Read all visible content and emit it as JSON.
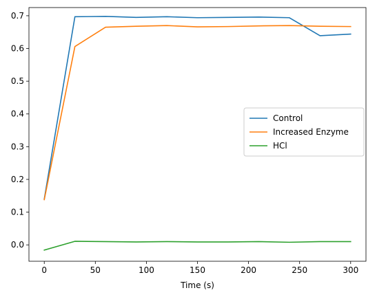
{
  "chart_data": {
    "type": "line",
    "title": "",
    "xlabel": "Time (s)",
    "ylabel": "",
    "xlim": [
      -15,
      315
    ],
    "ylim": [
      -0.05,
      0.725
    ],
    "xticks": [
      0,
      50,
      100,
      150,
      200,
      250,
      300
    ],
    "xtick_labels": [
      "0",
      "50",
      "100",
      "150",
      "200",
      "250",
      "300"
    ],
    "yticks": [
      0.0,
      0.1,
      0.2,
      0.3,
      0.4,
      0.5,
      0.6,
      0.7
    ],
    "ytick_labels": [
      "0.0",
      "0.1",
      "0.2",
      "0.3",
      "0.4",
      "0.5",
      "0.6",
      "0.7"
    ],
    "grid": false,
    "legend_position": "center-right",
    "x": [
      0,
      30,
      60,
      90,
      120,
      150,
      180,
      210,
      240,
      270,
      300
    ],
    "series": [
      {
        "name": "Control",
        "color": "#1f77b4",
        "values": [
          0.14,
          0.697,
          0.698,
          0.695,
          0.697,
          0.694,
          0.695,
          0.696,
          0.694,
          0.639,
          0.644
        ]
      },
      {
        "name": "Increased Enzyme",
        "color": "#ff7f0e",
        "values": [
          0.138,
          0.606,
          0.665,
          0.668,
          0.67,
          0.666,
          0.667,
          0.669,
          0.67,
          0.668,
          0.667
        ]
      },
      {
        "name": "HCl",
        "color": "#2ca02c",
        "values": [
          -0.016,
          0.011,
          0.01,
          0.009,
          0.01,
          0.009,
          0.009,
          0.01,
          0.008,
          0.01,
          0.01
        ]
      }
    ]
  }
}
